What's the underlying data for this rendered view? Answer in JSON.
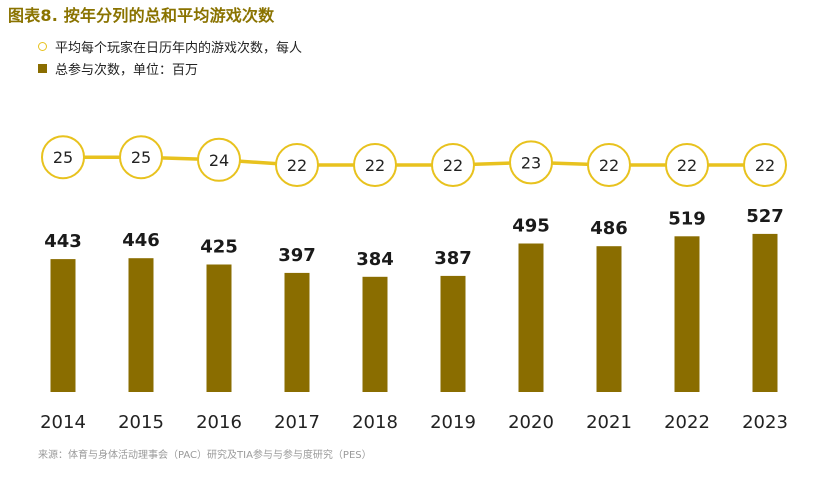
{
  "title": "图表8. 按年分列的总和平均游戏次数",
  "legend": {
    "line_label": "平均每个玩家在日历年内的游戏次数，每人",
    "bar_label": "总参与次数，单位：百万"
  },
  "source": "来源：体育与身体活动理事会（PAC）研究及TIA参与与参与度研究（PES）",
  "colors": {
    "title": "#8a7300",
    "bar": "#8a6d00",
    "line": "#e8c21e"
  },
  "chart_data": {
    "type": "bar",
    "title": "图表8. 按年分列的总和平均游戏次数",
    "categories": [
      "2014",
      "2015",
      "2016",
      "2017",
      "2018",
      "2019",
      "2020",
      "2021",
      "2022",
      "2023"
    ],
    "series": [
      {
        "name": "总参与次数，单位：百万",
        "type": "bar",
        "values": [
          443,
          446,
          425,
          397,
          384,
          387,
          495,
          486,
          519,
          527
        ]
      },
      {
        "name": "平均每个玩家在日历年内的游戏次数，每人",
        "type": "line",
        "values": [
          25,
          25,
          24,
          22,
          22,
          22,
          23,
          22,
          22,
          22
        ]
      }
    ],
    "xlabel": "",
    "ylabel": "",
    "grid": false,
    "legend_position": "top-left"
  }
}
